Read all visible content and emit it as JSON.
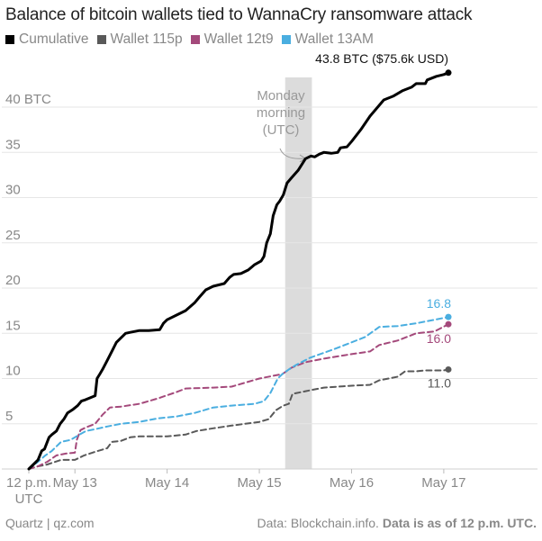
{
  "title": "Balance of bitcoin wallets tied to WannaCry ransomware attack",
  "legend": [
    {
      "label": "Cumulative",
      "color": "#000000"
    },
    {
      "label": "Wallet 115p",
      "color": "#595959"
    },
    {
      "label": "Wallet 12t9",
      "color": "#a4497b"
    },
    {
      "label": "Wallet 13AM",
      "color": "#4aaee0"
    }
  ],
  "footer": {
    "source": "Quartz | qz.com",
    "data_prefix": "Data: Blockchain.info.",
    "data_note": "Data is as of 12 p.m. UTC."
  },
  "annotation": {
    "lines": [
      "Monday",
      "morning",
      "(UTC)"
    ]
  },
  "chart_data": {
    "type": "line",
    "title": "Balance of bitcoin wallets tied to WannaCry ransomware attack",
    "xlabel": "",
    "ylabel": "",
    "x_ticks": [
      {
        "label": [
          "12 p.m.",
          "UTC"
        ],
        "day": 0
      },
      {
        "label": [
          "May 13"
        ],
        "day": 0.5
      },
      {
        "label": [
          "May 14"
        ],
        "day": 1.5
      },
      {
        "label": [
          "May 15"
        ],
        "day": 2.5
      },
      {
        "label": [
          "May 16"
        ],
        "day": 3.5
      },
      {
        "label": [
          "May 17"
        ],
        "day": 4.5
      }
    ],
    "y_ticks": [
      {
        "value": 5,
        "label": "5"
      },
      {
        "value": 10,
        "label": "10"
      },
      {
        "value": 15,
        "label": "15"
      },
      {
        "value": 20,
        "label": "20"
      },
      {
        "value": 25,
        "label": "25"
      },
      {
        "value": 30,
        "label": "30"
      },
      {
        "value": 35,
        "label": "35"
      },
      {
        "value": 40,
        "label": "40 BTC"
      }
    ],
    "xlim": [
      0,
      5
    ],
    "ylim": [
      0,
      44
    ],
    "grid": "horizontal",
    "highlight": {
      "from": 2.78,
      "to": 3.07,
      "color": "#dcdcdc"
    },
    "series": [
      {
        "name": "Cumulative",
        "color": "#000000",
        "dash": "solid",
        "end_label": "43.8 BTC ($75.6k USD)",
        "points": [
          [
            0.0,
            0.0
          ],
          [
            0.05,
            0.5
          ],
          [
            0.1,
            1.0
          ],
          [
            0.14,
            2.0
          ],
          [
            0.17,
            2.2
          ],
          [
            0.2,
            3.0
          ],
          [
            0.22,
            3.5
          ],
          [
            0.25,
            3.8
          ],
          [
            0.3,
            4.2
          ],
          [
            0.34,
            5.0
          ],
          [
            0.38,
            5.5
          ],
          [
            0.42,
            6.2
          ],
          [
            0.48,
            6.6
          ],
          [
            0.53,
            7.0
          ],
          [
            0.57,
            7.5
          ],
          [
            0.6,
            7.6
          ],
          [
            0.72,
            8.1
          ],
          [
            0.74,
            10.0
          ],
          [
            0.77,
            10.5
          ],
          [
            0.8,
            11.0
          ],
          [
            0.85,
            12.0
          ],
          [
            0.9,
            13.0
          ],
          [
            0.95,
            14.0
          ],
          [
            1.0,
            14.5
          ],
          [
            1.05,
            15.0
          ],
          [
            1.1,
            15.1
          ],
          [
            1.2,
            15.3
          ],
          [
            1.3,
            15.3
          ],
          [
            1.42,
            15.4
          ],
          [
            1.46,
            16.1
          ],
          [
            1.5,
            16.5
          ],
          [
            1.6,
            17.0
          ],
          [
            1.7,
            17.5
          ],
          [
            1.8,
            18.4
          ],
          [
            1.85,
            19.0
          ],
          [
            1.92,
            19.8
          ],
          [
            2.0,
            20.2
          ],
          [
            2.12,
            20.5
          ],
          [
            2.18,
            21.2
          ],
          [
            2.22,
            21.5
          ],
          [
            2.3,
            21.6
          ],
          [
            2.38,
            22.0
          ],
          [
            2.45,
            22.6
          ],
          [
            2.52,
            23.0
          ],
          [
            2.55,
            23.5
          ],
          [
            2.58,
            25.0
          ],
          [
            2.62,
            26.0
          ],
          [
            2.65,
            28.0
          ],
          [
            2.69,
            29.2
          ],
          [
            2.72,
            29.6
          ],
          [
            2.76,
            30.3
          ],
          [
            2.8,
            31.6
          ],
          [
            2.85,
            32.2
          ],
          [
            2.92,
            33.0
          ],
          [
            3.0,
            34.3
          ],
          [
            3.06,
            34.6
          ],
          [
            3.1,
            34.5
          ],
          [
            3.15,
            34.8
          ],
          [
            3.2,
            35.0
          ],
          [
            3.28,
            34.9
          ],
          [
            3.35,
            35.0
          ],
          [
            3.38,
            35.5
          ],
          [
            3.45,
            35.6
          ],
          [
            3.5,
            36.2
          ],
          [
            3.6,
            37.5
          ],
          [
            3.7,
            39.0
          ],
          [
            3.8,
            40.2
          ],
          [
            3.85,
            40.8
          ],
          [
            3.95,
            41.2
          ],
          [
            4.05,
            41.8
          ],
          [
            4.15,
            42.2
          ],
          [
            4.2,
            42.6
          ],
          [
            4.3,
            42.6
          ],
          [
            4.32,
            43.0
          ],
          [
            4.42,
            43.4
          ],
          [
            4.5,
            43.6
          ],
          [
            4.55,
            43.8
          ]
        ]
      },
      {
        "name": "Wallet 115p",
        "color": "#595959",
        "dash": "dashed",
        "end_label": "11.0",
        "points": [
          [
            0.0,
            0.0
          ],
          [
            0.1,
            0.3
          ],
          [
            0.2,
            0.5
          ],
          [
            0.35,
            1.0
          ],
          [
            0.5,
            1.0
          ],
          [
            0.6,
            1.5
          ],
          [
            0.75,
            2.0
          ],
          [
            0.85,
            2.3
          ],
          [
            0.9,
            3.0
          ],
          [
            1.0,
            3.1
          ],
          [
            1.1,
            3.5
          ],
          [
            1.2,
            3.6
          ],
          [
            1.5,
            3.6
          ],
          [
            1.7,
            3.8
          ],
          [
            1.82,
            4.2
          ],
          [
            2.0,
            4.5
          ],
          [
            2.2,
            4.8
          ],
          [
            2.5,
            5.2
          ],
          [
            2.6,
            5.5
          ],
          [
            2.68,
            6.5
          ],
          [
            2.76,
            7.0
          ],
          [
            2.82,
            7.2
          ],
          [
            2.86,
            8.3
          ],
          [
            3.0,
            8.6
          ],
          [
            3.2,
            9.0
          ],
          [
            3.5,
            9.2
          ],
          [
            3.7,
            9.3
          ],
          [
            3.8,
            9.8
          ],
          [
            4.0,
            10.2
          ],
          [
            4.08,
            10.8
          ],
          [
            4.2,
            10.8
          ],
          [
            4.3,
            10.9
          ],
          [
            4.5,
            10.9
          ],
          [
            4.55,
            11.0
          ]
        ]
      },
      {
        "name": "Wallet 12t9",
        "color": "#a4497b",
        "dash": "dashed",
        "end_label": "16.0",
        "points": [
          [
            0.0,
            0.0
          ],
          [
            0.1,
            0.3
          ],
          [
            0.2,
            0.8
          ],
          [
            0.3,
            1.5
          ],
          [
            0.4,
            1.7
          ],
          [
            0.5,
            1.8
          ],
          [
            0.52,
            3.2
          ],
          [
            0.56,
            4.3
          ],
          [
            0.62,
            4.6
          ],
          [
            0.72,
            5.0
          ],
          [
            0.8,
            6.0
          ],
          [
            0.88,
            6.8
          ],
          [
            1.0,
            6.9
          ],
          [
            1.2,
            7.2
          ],
          [
            1.4,
            7.8
          ],
          [
            1.6,
            8.5
          ],
          [
            1.7,
            8.9
          ],
          [
            2.0,
            9.0
          ],
          [
            2.2,
            9.1
          ],
          [
            2.5,
            10.0
          ],
          [
            2.75,
            10.5
          ],
          [
            2.85,
            11.2
          ],
          [
            3.0,
            11.8
          ],
          [
            3.2,
            12.2
          ],
          [
            3.5,
            12.7
          ],
          [
            3.7,
            13.0
          ],
          [
            3.8,
            13.7
          ],
          [
            4.0,
            14.2
          ],
          [
            4.2,
            15.0
          ],
          [
            4.4,
            15.2
          ],
          [
            4.55,
            16.0
          ]
        ]
      },
      {
        "name": "Wallet 13AM",
        "color": "#4aaee0",
        "dash": "dashed",
        "end_label": "16.8",
        "points": [
          [
            0.0,
            0.0
          ],
          [
            0.1,
            0.8
          ],
          [
            0.18,
            1.5
          ],
          [
            0.25,
            2.0
          ],
          [
            0.35,
            3.0
          ],
          [
            0.45,
            3.2
          ],
          [
            0.55,
            3.8
          ],
          [
            0.62,
            4.2
          ],
          [
            0.72,
            4.4
          ],
          [
            0.85,
            4.7
          ],
          [
            1.0,
            5.0
          ],
          [
            1.2,
            5.2
          ],
          [
            1.4,
            5.6
          ],
          [
            1.6,
            5.8
          ],
          [
            1.8,
            6.2
          ],
          [
            2.0,
            6.8
          ],
          [
            2.2,
            7.0
          ],
          [
            2.45,
            7.2
          ],
          [
            2.55,
            7.5
          ],
          [
            2.62,
            8.4
          ],
          [
            2.7,
            10.0
          ],
          [
            2.75,
            10.5
          ],
          [
            2.82,
            11.0
          ],
          [
            2.9,
            11.5
          ],
          [
            3.05,
            12.3
          ],
          [
            3.3,
            13.2
          ],
          [
            3.5,
            14.0
          ],
          [
            3.65,
            14.6
          ],
          [
            3.8,
            15.7
          ],
          [
            4.0,
            15.8
          ],
          [
            4.2,
            16.1
          ],
          [
            4.4,
            16.5
          ],
          [
            4.55,
            16.8
          ]
        ]
      }
    ]
  }
}
